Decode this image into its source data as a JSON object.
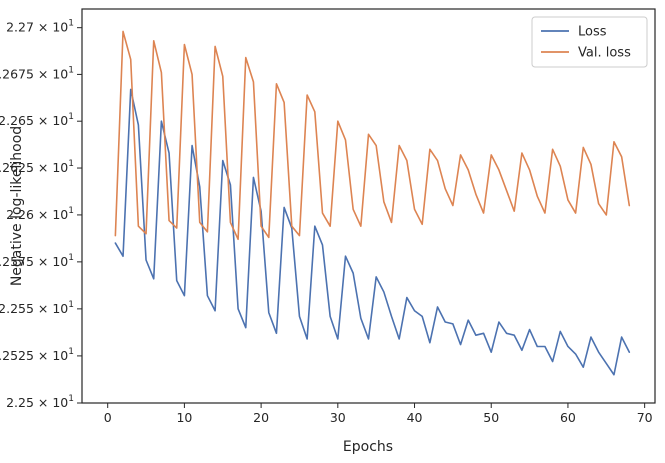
{
  "chart_data": {
    "type": "line",
    "title": "",
    "xlabel": "Epochs",
    "ylabel": "Negative log-likelihood",
    "xlim": [
      -3.35,
      71.35
    ],
    "ylim": [
      22.5,
      22.71
    ],
    "yscale": "log",
    "grid": false,
    "legend_position": "top-right",
    "xticks": [
      0,
      10,
      20,
      30,
      40,
      50,
      60,
      70
    ],
    "xtick_labels": [
      "0",
      "10",
      "20",
      "30",
      "40",
      "50",
      "60",
      "70"
    ],
    "yticks": [
      22.5,
      22.525,
      22.55,
      22.575,
      22.6,
      22.625,
      22.65,
      22.675,
      22.7
    ],
    "ytick_labels": [
      {
        "base": "2.25",
        "times": "×",
        "power": "10",
        "exp": "1"
      },
      {
        "base": "2.2525",
        "times": "×",
        "power": "10",
        "exp": "1"
      },
      {
        "base": "2.255",
        "times": "×",
        "power": "10",
        "exp": "1"
      },
      {
        "base": "2.2575",
        "times": "×",
        "power": "10",
        "exp": "1"
      },
      {
        "base": "2.26",
        "times": "×",
        "power": "10",
        "exp": "1"
      },
      {
        "base": "2.2625",
        "times": "×",
        "power": "10",
        "exp": "1"
      },
      {
        "base": "2.265",
        "times": "×",
        "power": "10",
        "exp": "1"
      },
      {
        "base": "2.2675",
        "times": "×",
        "power": "10",
        "exp": "1"
      },
      {
        "base": "2.27",
        "times": "×",
        "power": "10",
        "exp": "1"
      }
    ],
    "x": [
      1,
      2,
      3,
      4,
      5,
      6,
      7,
      8,
      9,
      10,
      11,
      12,
      13,
      14,
      15,
      16,
      17,
      18,
      19,
      20,
      21,
      22,
      23,
      24,
      25,
      26,
      27,
      28,
      29,
      30,
      31,
      32,
      33,
      34,
      35,
      36,
      37,
      38,
      39,
      40,
      41,
      42,
      43,
      44,
      45,
      46,
      47,
      48,
      49,
      50,
      51,
      52,
      53,
      54,
      55,
      56,
      57,
      58,
      59,
      60,
      61,
      62,
      63,
      64,
      65,
      66,
      67,
      68
    ],
    "series": [
      {
        "name": "Loss",
        "color": "#4c72b0",
        "values": [
          22.585,
          22.578,
          22.667,
          22.648,
          22.576,
          22.566,
          22.65,
          22.633,
          22.565,
          22.557,
          22.637,
          22.615,
          22.557,
          22.549,
          22.629,
          22.616,
          22.55,
          22.54,
          22.62,
          22.602,
          22.548,
          22.537,
          22.604,
          22.593,
          22.546,
          22.534,
          22.594,
          22.584,
          22.546,
          22.534,
          22.578,
          22.569,
          22.545,
          22.534,
          22.567,
          22.559,
          22.546,
          22.534,
          22.556,
          22.549,
          22.546,
          22.532,
          22.551,
          22.543,
          22.542,
          22.531,
          22.544,
          22.536,
          22.537,
          22.527,
          22.543,
          22.537,
          22.536,
          22.528,
          22.539,
          22.53,
          22.53,
          22.522,
          22.538,
          22.53,
          22.526,
          22.519,
          22.535,
          22.527,
          22.521,
          22.515,
          22.535,
          22.527
        ]
      },
      {
        "name": "Val. loss",
        "color": "#dd8452",
        "values": [
          22.589,
          22.698,
          22.683,
          22.594,
          22.59,
          22.693,
          22.676,
          22.597,
          22.593,
          22.691,
          22.675,
          22.596,
          22.591,
          22.69,
          22.674,
          22.596,
          22.587,
          22.684,
          22.671,
          22.594,
          22.588,
          22.67,
          22.66,
          22.594,
          22.589,
          22.664,
          22.655,
          22.601,
          22.594,
          22.65,
          22.64,
          22.603,
          22.594,
          22.643,
          22.637,
          22.607,
          22.596,
          22.637,
          22.629,
          22.603,
          22.595,
          22.635,
          22.629,
          22.614,
          22.605,
          22.632,
          22.624,
          22.611,
          22.601,
          22.632,
          22.624,
          22.613,
          22.602,
          22.633,
          22.624,
          22.61,
          22.601,
          22.635,
          22.626,
          22.608,
          22.601,
          22.636,
          22.627,
          22.606,
          22.6,
          22.639,
          22.631,
          22.605
        ]
      }
    ]
  }
}
